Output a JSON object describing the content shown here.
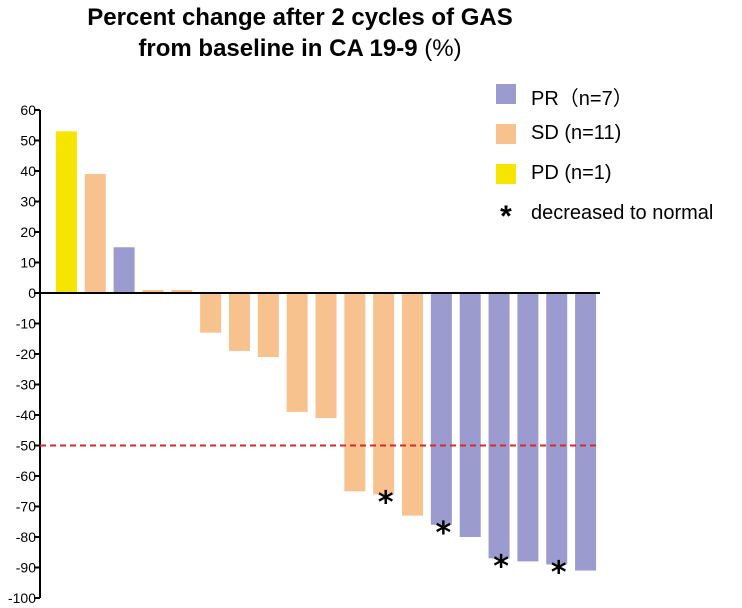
{
  "chart_data": {
    "type": "bar",
    "title_line1": "Percent change after 2 cycles of GAS",
    "title_line2": "from baseline in CA 19-9",
    "title_unit": "(%)",
    "ylim": [
      -100,
      60
    ],
    "yticks": [
      60,
      50,
      40,
      30,
      20,
      10,
      0,
      -10,
      -20,
      -30,
      -40,
      -50,
      -60,
      -70,
      -80,
      -90,
      -100
    ],
    "reference_line": -50,
    "series": [
      {
        "name": "PR(n=7)",
        "color": "#9b9bd0"
      },
      {
        "name": "SD (n=11)",
        "color": "#f8c28e"
      },
      {
        "name": "PD (n=1)",
        "color": "#f5e500"
      }
    ],
    "bars": [
      {
        "value": 53,
        "group": "PD",
        "marker": false
      },
      {
        "value": 39,
        "group": "SD",
        "marker": false
      },
      {
        "value": 15,
        "group": "PR",
        "marker": false
      },
      {
        "value": 1,
        "group": "SD",
        "marker": false
      },
      {
        "value": 1,
        "group": "SD",
        "marker": false
      },
      {
        "value": -13,
        "group": "SD",
        "marker": false
      },
      {
        "value": -19,
        "group": "SD",
        "marker": false
      },
      {
        "value": -21,
        "group": "SD",
        "marker": false
      },
      {
        "value": -39,
        "group": "SD",
        "marker": false
      },
      {
        "value": -41,
        "group": "SD",
        "marker": false
      },
      {
        "value": -65,
        "group": "SD",
        "marker": false
      },
      {
        "value": -66,
        "group": "SD",
        "marker": true
      },
      {
        "value": -73,
        "group": "SD",
        "marker": false
      },
      {
        "value": -76,
        "group": "PR",
        "marker": true
      },
      {
        "value": -80,
        "group": "PR",
        "marker": false
      },
      {
        "value": -87,
        "group": "PR",
        "marker": true
      },
      {
        "value": -88,
        "group": "PR",
        "marker": false
      },
      {
        "value": -89,
        "group": "PR",
        "marker": true
      },
      {
        "value": -91,
        "group": "PR",
        "marker": false
      }
    ],
    "marker_symbol": "*",
    "legend": {
      "pr_label": "PR（n=7）",
      "sd_label": "SD (n=11)",
      "pd_label": "PD (n=1)",
      "marker_label": "decreased to normal"
    },
    "colors": {
      "PR": "#9b9bd0",
      "SD": "#f8c28e",
      "PD": "#f5e500",
      "reference": "#d42a2a"
    }
  }
}
